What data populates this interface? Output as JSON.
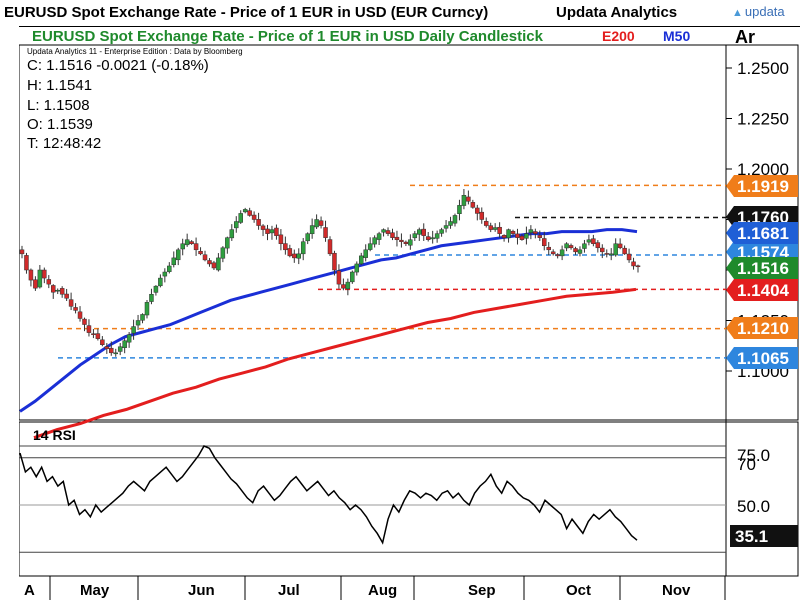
{
  "header": {
    "title": "EURUSD Spot Exchange Rate - Price of 1 EUR in USD (EUR Curncy)",
    "vendor": "Updata Analytics",
    "logo_text": "updata"
  },
  "chart": {
    "subtitle": "EURUSD Spot Exchange Rate - Price of 1 EUR in USD Daily Candlestick",
    "legend_e200": "E200",
    "legend_m50": "M50",
    "axis_corner": "Ar",
    "source_note": "Updata Analytics 11 - Enterprise Edition : Data by Bloomberg",
    "ohlc": {
      "close": "C: 1.1516  -0.0021 (-0.18%)",
      "high": "H: 1.1541",
      "low": "L: 1.1508",
      "open": "O: 1.1539",
      "time": "T: 12:48:42"
    },
    "rsi_label": "14 RSI"
  },
  "chart_data": {
    "type": "candlestick",
    "timeframe": "Daily",
    "price_axis": {
      "ticks": [
        "1.2500",
        "1.2250",
        "1.2000",
        "1.1750",
        "1.1500",
        "1.1250",
        "1.1000"
      ],
      "tick_values": [
        1.25,
        1.225,
        1.2,
        1.175,
        1.15,
        1.125,
        1.1
      ]
    },
    "x_axis": {
      "ticks": [
        "A",
        "May",
        "Jun",
        "Jul",
        "Aug",
        "Sep",
        "Oct",
        "Nov"
      ]
    },
    "levels": [
      {
        "name": "level-1919",
        "value": 1.1919,
        "label": "1.1919",
        "color": "#f07d1a"
      },
      {
        "name": "level-1760",
        "value": 1.176,
        "label": "1.1760",
        "color": "#111111"
      },
      {
        "name": "level-1681",
        "value": 1.1681,
        "label": "1.1681",
        "color": "#1f5fd6"
      },
      {
        "name": "level-1574",
        "value": 1.1574,
        "label": "1.1574",
        "color": "#2e86de"
      },
      {
        "name": "level-1516",
        "value": 1.1516,
        "label": "1.1516",
        "color": "#1f8a2c"
      },
      {
        "name": "level-1404",
        "value": 1.1404,
        "label": "1.1404",
        "color": "#e31e1e"
      },
      {
        "name": "level-1210",
        "value": 1.121,
        "label": "1.1210",
        "color": "#f07d1a"
      },
      {
        "name": "level-1065",
        "value": 1.1065,
        "label": "1.1065",
        "color": "#2e86de"
      }
    ],
    "close_path": [
      1.158,
      1.15,
      1.145,
      1.141,
      1.15,
      1.146,
      1.143,
      1.139,
      1.14,
      1.138,
      1.136,
      1.132,
      1.13,
      1.126,
      1.123,
      1.119,
      1.118,
      1.116,
      1.113,
      1.111,
      1.109,
      1.109,
      1.112,
      1.115,
      1.118,
      1.122,
      1.125,
      1.128,
      1.134,
      1.138,
      1.142,
      1.146,
      1.149,
      1.152,
      1.156,
      1.16,
      1.163,
      1.165,
      1.163,
      1.16,
      1.158,
      1.155,
      1.153,
      1.151,
      1.156,
      1.161,
      1.166,
      1.17,
      1.174,
      1.178,
      1.18,
      1.177,
      1.175,
      1.172,
      1.17,
      1.168,
      1.17,
      1.167,
      1.163,
      1.16,
      1.157,
      1.156,
      1.158,
      1.164,
      1.168,
      1.172,
      1.175,
      1.172,
      1.166,
      1.158,
      1.15,
      1.143,
      1.141,
      1.144,
      1.149,
      1.153,
      1.157,
      1.16,
      1.163,
      1.166,
      1.168,
      1.17,
      1.168,
      1.166,
      1.165,
      1.164,
      1.163,
      1.165,
      1.168,
      1.17,
      1.167,
      1.165,
      1.166,
      1.168,
      1.17,
      1.172,
      1.174,
      1.177,
      1.182,
      1.187,
      1.184,
      1.181,
      1.178,
      1.175,
      1.172,
      1.17,
      1.171,
      1.168,
      1.166,
      1.17,
      1.168,
      1.166,
      1.165,
      1.168,
      1.17,
      1.168,
      1.166,
      1.162,
      1.16,
      1.158,
      1.157,
      1.16,
      1.163,
      1.161,
      1.159,
      1.16,
      1.163,
      1.165,
      1.163,
      1.161,
      1.159,
      1.158,
      1.158,
      1.163,
      1.161,
      1.158,
      1.155,
      1.152,
      1.1516
    ],
    "m50_path": [
      1.08,
      1.085,
      1.091,
      1.097,
      1.103,
      1.108,
      1.113,
      1.117,
      1.119,
      1.121,
      1.123,
      1.126,
      1.129,
      1.132,
      1.135,
      1.137,
      1.139,
      1.141,
      1.143,
      1.145,
      1.147,
      1.149,
      1.151,
      1.153,
      1.155,
      1.156,
      1.158,
      1.16,
      1.162,
      1.163,
      1.164,
      1.165,
      1.166,
      1.167,
      1.168,
      1.168,
      1.169,
      1.169,
      1.169,
      1.17,
      1.17,
      1.169
    ],
    "e200_path": [
      1.067,
      1.071,
      1.074,
      1.078,
      1.081,
      1.085,
      1.089,
      1.092,
      1.096,
      1.099,
      1.102,
      1.106,
      1.109,
      1.112,
      1.115,
      1.118,
      1.121,
      1.124,
      1.126,
      1.129,
      1.131,
      1.133,
      1.135,
      1.137,
      1.138,
      1.139,
      1.1404
    ],
    "rsi": {
      "period": 14,
      "value": "35.1",
      "value_num": 35.1,
      "ticks": [
        "75.0",
        "70",
        "50.0"
      ],
      "tick_values": [
        75,
        70,
        50
      ],
      "path": [
        72,
        64,
        66,
        62,
        66,
        60,
        62,
        58,
        60,
        50,
        52,
        46,
        48,
        45,
        50,
        47,
        49,
        51,
        53,
        55,
        58,
        60,
        58,
        56,
        60,
        62,
        64,
        66,
        63,
        60,
        62,
        65,
        68,
        71,
        75,
        74,
        70,
        67,
        64,
        61,
        59,
        56,
        53,
        51,
        56,
        58,
        55,
        52,
        54,
        57,
        60,
        62,
        59,
        56,
        58,
        60,
        57,
        54,
        56,
        53,
        51,
        48,
        50,
        48,
        45,
        41,
        38,
        34,
        44,
        50,
        47,
        52,
        56,
        55,
        53,
        55,
        54,
        52,
        55,
        56,
        53,
        55,
        52,
        50,
        55,
        58,
        60,
        63,
        58,
        55,
        60,
        58,
        55,
        53,
        52,
        50,
        47,
        52,
        50,
        48,
        46,
        40,
        44,
        41,
        38,
        43,
        46,
        44,
        46,
        48,
        45,
        43,
        40,
        37,
        35.1
      ]
    }
  },
  "colors": {
    "up_candle": "#2e9e3f",
    "down_candle": "#d12a2a",
    "m50": "#1a2fd6",
    "e200": "#e31e1e",
    "rsi_line": "#000000",
    "title_green": "#1f8a2c"
  }
}
